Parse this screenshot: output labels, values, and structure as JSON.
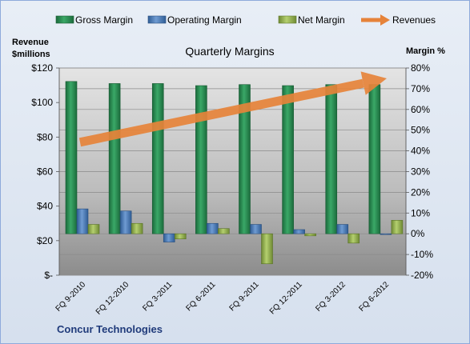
{
  "chart_data": {
    "type": "bar",
    "title": "Quarterly Margins",
    "left_axis_title_lines": [
      "Revenue",
      "$millions"
    ],
    "right_axis_title": "Margin %",
    "company": "Concur Technologies",
    "categories": [
      "FQ 9-2010",
      "FQ 12-2010",
      "FQ 3-2011",
      "FQ 6-2011",
      "FQ 9-2011",
      "FQ 12-2011",
      "FQ 3-2012",
      "FQ 6-2012"
    ],
    "left_ticks": [
      "$-",
      "$20",
      "$40",
      "$60",
      "$80",
      "$100",
      "$120"
    ],
    "right_ticks": [
      "-20%",
      "-10%",
      "0%",
      "10%",
      "20%",
      "30%",
      "40%",
      "50%",
      "60%",
      "70%",
      "80%"
    ],
    "left_axis_range": [
      0,
      120
    ],
    "right_axis_range": [
      -20,
      80
    ],
    "series": [
      {
        "name": "Gross Margin",
        "color": "#2e8b57",
        "axis": "right",
        "values": [
          73.5,
          72.5,
          72.5,
          71.5,
          72,
          71.5,
          72,
          72
        ]
      },
      {
        "name": "Operating Margin",
        "color": "#4f81bd",
        "axis": "right",
        "values": [
          12,
          11,
          -4,
          5,
          4.5,
          2,
          4.5,
          0
        ]
      },
      {
        "name": "Net Margin",
        "color": "#9bbb59",
        "axis": "right",
        "values": [
          4.5,
          5,
          -2.5,
          2.5,
          -14.5,
          -1,
          -4.5,
          6.5
        ]
      }
    ],
    "revenues": {
      "name": "Revenues",
      "color": "#e6833a",
      "axis": "left",
      "style": "arrow",
      "start": 77,
      "end": 114
    },
    "grid": true,
    "legend_position": "top"
  }
}
